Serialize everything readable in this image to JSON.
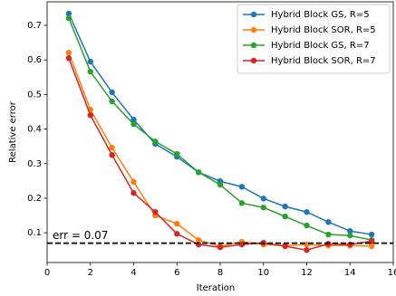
{
  "chart_data": {
    "type": "line",
    "x_label": "Iteration",
    "y_label": "Relative error",
    "x": [
      1,
      2,
      3,
      4,
      5,
      6,
      7,
      8,
      9,
      10,
      11,
      12,
      13,
      14,
      15
    ],
    "series": [
      {
        "name": "Hybrid Block GS, R=5",
        "color": "#1f77b4",
        "values": [
          0.734,
          0.595,
          0.506,
          0.427,
          0.357,
          0.32,
          0.275,
          0.249,
          0.233,
          0.199,
          0.176,
          0.16,
          0.131,
          0.105,
          0.095
        ]
      },
      {
        "name": "Hybrid Block SOR, R=5",
        "color": "#ff7f0e",
        "values": [
          0.621,
          0.456,
          0.346,
          0.247,
          0.15,
          0.126,
          0.079,
          0.061,
          0.074,
          0.066,
          0.063,
          0.066,
          0.063,
          0.063,
          0.061
        ]
      },
      {
        "name": "Hybrid Block GS, R=7",
        "color": "#2ca02c",
        "values": [
          0.721,
          0.566,
          0.48,
          0.414,
          0.364,
          0.328,
          0.275,
          0.239,
          0.186,
          0.173,
          0.147,
          0.121,
          0.095,
          0.092,
          0.079
        ]
      },
      {
        "name": "Hybrid Block SOR, R=7",
        "color": "#d62728",
        "values": [
          0.605,
          0.44,
          0.325,
          0.215,
          0.16,
          0.097,
          0.066,
          0.058,
          0.066,
          0.071,
          0.061,
          0.05,
          0.068,
          0.066,
          0.076
        ]
      }
    ],
    "hline": {
      "value": 0.07,
      "label": "err = 0.07"
    },
    "xlim": [
      0,
      16
    ],
    "ylim": [
      0.014,
      0.768
    ],
    "xticks": [
      0,
      2,
      4,
      6,
      8,
      10,
      12,
      14,
      16
    ],
    "yticks": [
      0.1,
      0.2,
      0.3,
      0.4,
      0.5,
      0.6,
      0.7
    ],
    "legend": "upper right"
  }
}
